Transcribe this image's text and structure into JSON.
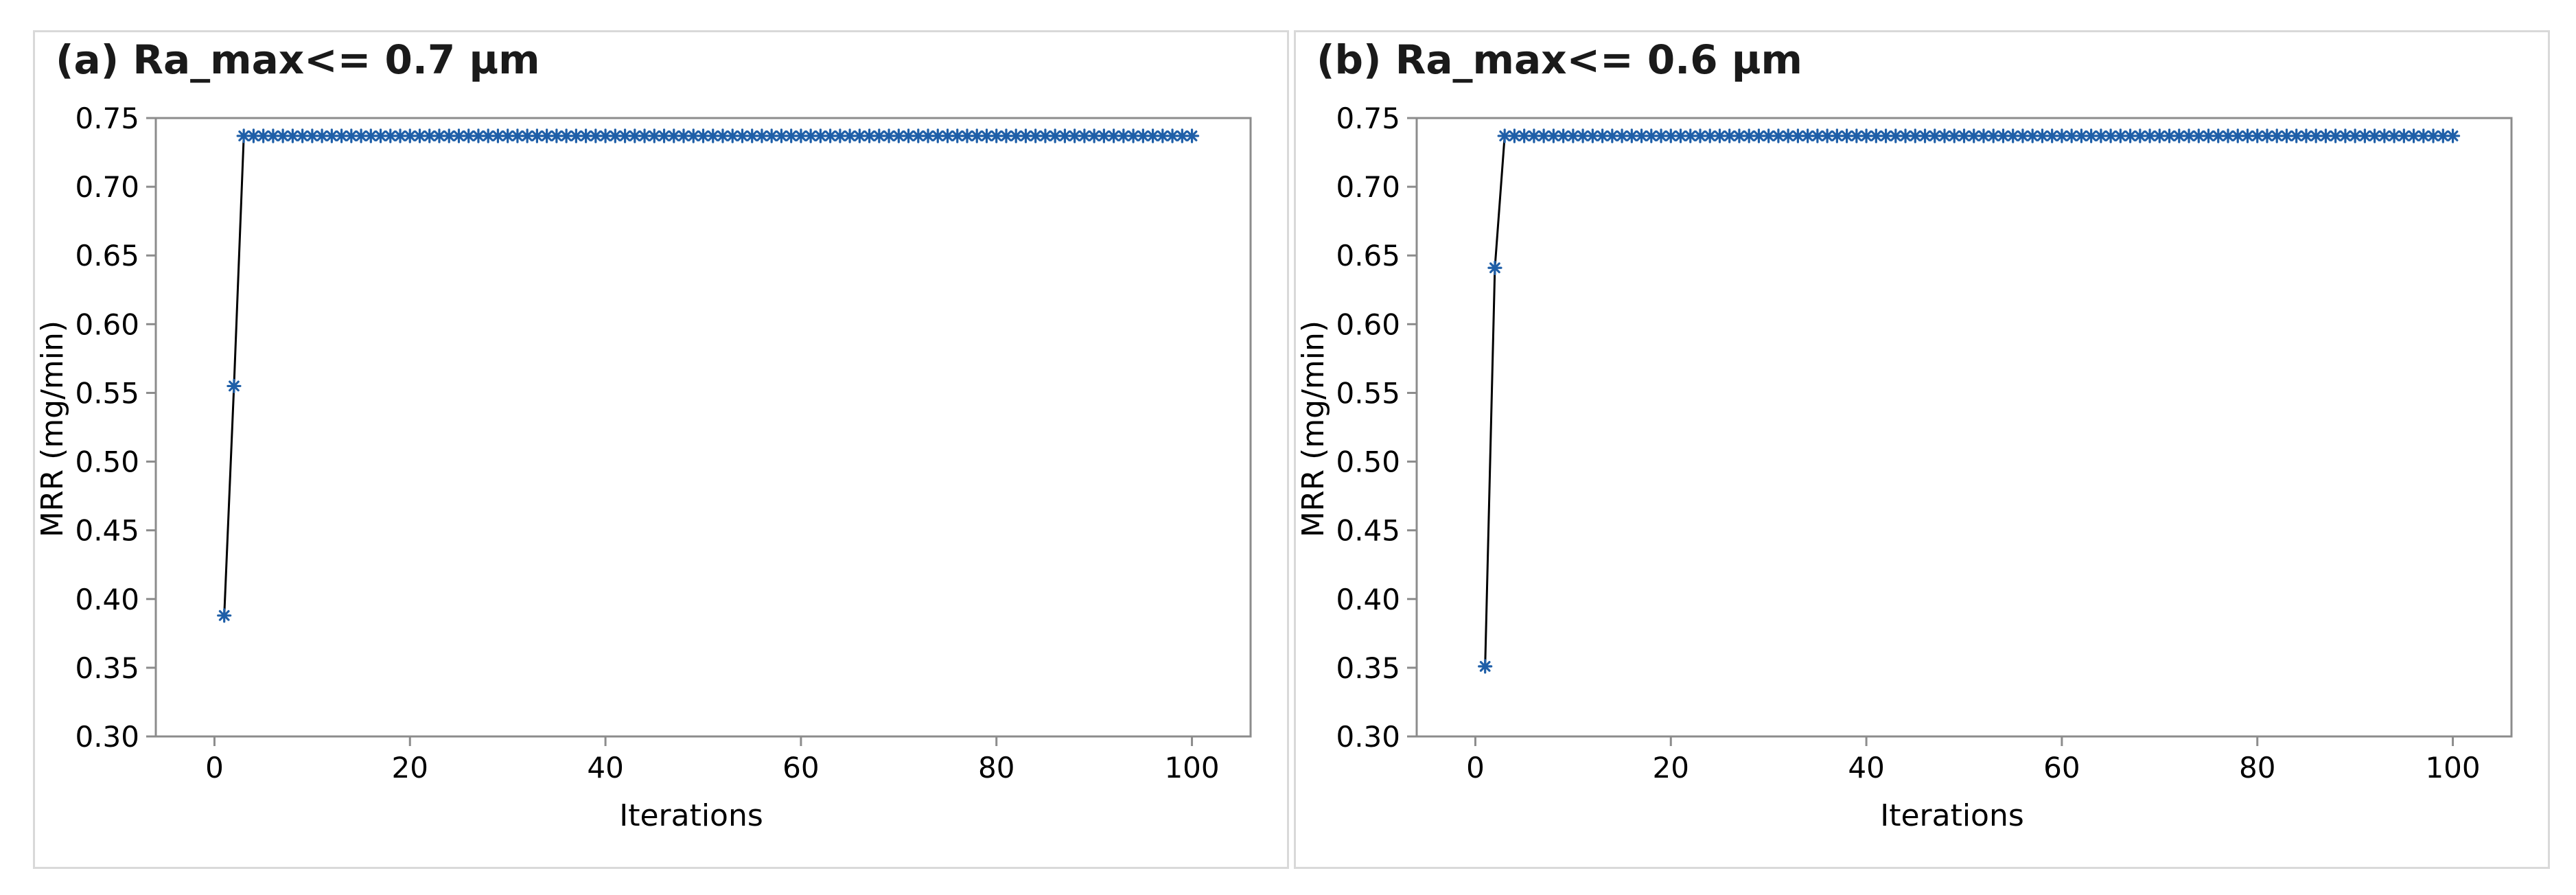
{
  "chart_data": [
    {
      "type": "line",
      "title": "(a) Ra_max<= 0.7 µm",
      "xlabel": "Iterations",
      "ylabel": "MRR (mg/min)",
      "xlim": [
        -6,
        106
      ],
      "ylim": [
        0.3,
        0.75
      ],
      "xticks": [
        "0",
        "20",
        "40",
        "60",
        "80",
        "100"
      ],
      "yticks": [
        "0.30",
        "0.35",
        "0.40",
        "0.45",
        "0.50",
        "0.55",
        "0.60",
        "0.65",
        "0.70",
        "0.75"
      ],
      "grid": false,
      "series": [
        {
          "marker": "asterisk",
          "x": [
            1,
            2,
            3,
            4,
            5,
            6,
            7,
            8,
            9,
            10,
            11,
            12,
            13,
            14,
            15,
            16,
            17,
            18,
            19,
            20,
            21,
            22,
            23,
            24,
            25,
            26,
            27,
            28,
            29,
            30,
            31,
            32,
            33,
            34,
            35,
            36,
            37,
            38,
            39,
            40,
            41,
            42,
            43,
            44,
            45,
            46,
            47,
            48,
            49,
            50,
            51,
            52,
            53,
            54,
            55,
            56,
            57,
            58,
            59,
            60,
            61,
            62,
            63,
            64,
            65,
            66,
            67,
            68,
            69,
            70,
            71,
            72,
            73,
            74,
            75,
            76,
            77,
            78,
            79,
            80,
            81,
            82,
            83,
            84,
            85,
            86,
            87,
            88,
            89,
            90,
            91,
            92,
            93,
            94,
            95,
            96,
            97,
            98,
            99,
            100
          ],
          "y": [
            0.388,
            0.555,
            0.737,
            0.737,
            0.737,
            0.737,
            0.737,
            0.737,
            0.737,
            0.737,
            0.737,
            0.737,
            0.737,
            0.737,
            0.737,
            0.737,
            0.737,
            0.737,
            0.737,
            0.737,
            0.737,
            0.737,
            0.737,
            0.737,
            0.737,
            0.737,
            0.737,
            0.737,
            0.737,
            0.737,
            0.737,
            0.737,
            0.737,
            0.737,
            0.737,
            0.737,
            0.737,
            0.737,
            0.737,
            0.737,
            0.737,
            0.737,
            0.737,
            0.737,
            0.737,
            0.737,
            0.737,
            0.737,
            0.737,
            0.737,
            0.737,
            0.737,
            0.737,
            0.737,
            0.737,
            0.737,
            0.737,
            0.737,
            0.737,
            0.737,
            0.737,
            0.737,
            0.737,
            0.737,
            0.737,
            0.737,
            0.737,
            0.737,
            0.737,
            0.737,
            0.737,
            0.737,
            0.737,
            0.737,
            0.737,
            0.737,
            0.737,
            0.737,
            0.737,
            0.737,
            0.737,
            0.737,
            0.737,
            0.737,
            0.737,
            0.737,
            0.737,
            0.737,
            0.737,
            0.737,
            0.737,
            0.737,
            0.737,
            0.737,
            0.737,
            0.737,
            0.737,
            0.737,
            0.737,
            0.737
          ]
        }
      ]
    },
    {
      "type": "line",
      "title": "(b) Ra_max<= 0.6 µm",
      "xlabel": "Iterations",
      "ylabel": "MRR (mg/min)",
      "xlim": [
        -6,
        106
      ],
      "ylim": [
        0.3,
        0.75
      ],
      "xticks": [
        "0",
        "20",
        "40",
        "60",
        "80",
        "100"
      ],
      "yticks": [
        "0.30",
        "0.35",
        "0.40",
        "0.45",
        "0.50",
        "0.55",
        "0.60",
        "0.65",
        "0.70",
        "0.75"
      ],
      "grid": false,
      "series": [
        {
          "marker": "asterisk",
          "x": [
            1,
            2,
            3,
            4,
            5,
            6,
            7,
            8,
            9,
            10,
            11,
            12,
            13,
            14,
            15,
            16,
            17,
            18,
            19,
            20,
            21,
            22,
            23,
            24,
            25,
            26,
            27,
            28,
            29,
            30,
            31,
            32,
            33,
            34,
            35,
            36,
            37,
            38,
            39,
            40,
            41,
            42,
            43,
            44,
            45,
            46,
            47,
            48,
            49,
            50,
            51,
            52,
            53,
            54,
            55,
            56,
            57,
            58,
            59,
            60,
            61,
            62,
            63,
            64,
            65,
            66,
            67,
            68,
            69,
            70,
            71,
            72,
            73,
            74,
            75,
            76,
            77,
            78,
            79,
            80,
            81,
            82,
            83,
            84,
            85,
            86,
            87,
            88,
            89,
            90,
            91,
            92,
            93,
            94,
            95,
            96,
            97,
            98,
            99,
            100
          ],
          "y": [
            0.351,
            0.641,
            0.737,
            0.737,
            0.737,
            0.737,
            0.737,
            0.737,
            0.737,
            0.737,
            0.737,
            0.737,
            0.737,
            0.737,
            0.737,
            0.737,
            0.737,
            0.737,
            0.737,
            0.737,
            0.737,
            0.737,
            0.737,
            0.737,
            0.737,
            0.737,
            0.737,
            0.737,
            0.737,
            0.737,
            0.737,
            0.737,
            0.737,
            0.737,
            0.737,
            0.737,
            0.737,
            0.737,
            0.737,
            0.737,
            0.737,
            0.737,
            0.737,
            0.737,
            0.737,
            0.737,
            0.737,
            0.737,
            0.737,
            0.737,
            0.737,
            0.737,
            0.737,
            0.737,
            0.737,
            0.737,
            0.737,
            0.737,
            0.737,
            0.737,
            0.737,
            0.737,
            0.737,
            0.737,
            0.737,
            0.737,
            0.737,
            0.737,
            0.737,
            0.737,
            0.737,
            0.737,
            0.737,
            0.737,
            0.737,
            0.737,
            0.737,
            0.737,
            0.737,
            0.737,
            0.737,
            0.737,
            0.737,
            0.737,
            0.737,
            0.737,
            0.737,
            0.737,
            0.737,
            0.737,
            0.737,
            0.737,
            0.737,
            0.737,
            0.737,
            0.737,
            0.737,
            0.737,
            0.737,
            0.737
          ]
        }
      ]
    }
  ],
  "colors": {
    "marker": "#1f5fa8",
    "line": "#000000",
    "frame": "#8c8c8c",
    "panel_border": "#d9d9d9"
  }
}
